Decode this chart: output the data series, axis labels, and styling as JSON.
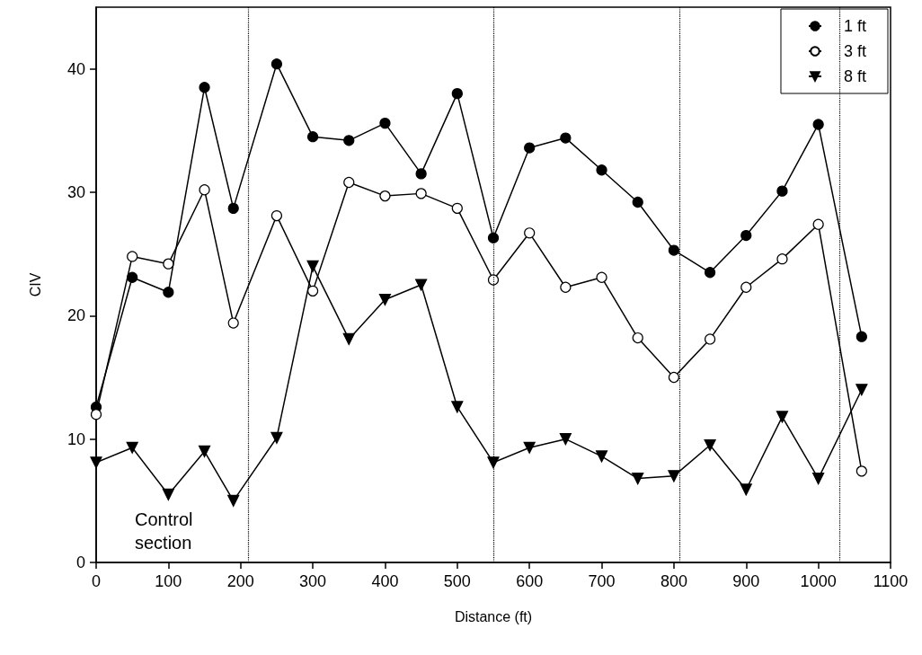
{
  "chart_data": {
    "type": "line",
    "xlabel": "Distance (ft)",
    "ylabel": "CIV",
    "x": [
      0,
      50,
      100,
      150,
      190,
      250,
      300,
      350,
      400,
      450,
      500,
      550,
      600,
      650,
      700,
      750,
      800,
      850,
      900,
      950,
      1000,
      1060
    ],
    "series": [
      {
        "name": "1 ft",
        "color": "#000000",
        "marker": "circle",
        "values": [
          12.6,
          23.1,
          21.9,
          38.5,
          28.7,
          40.4,
          34.5,
          34.2,
          35.6,
          31.5,
          38.0,
          26.3,
          33.6,
          34.4,
          31.8,
          29.2,
          25.3,
          23.5,
          26.5,
          30.1,
          35.5,
          18.3
        ]
      },
      {
        "name": "3 ft",
        "color": "#000000",
        "marker": "circle",
        "colors": [
          "#ffffff",
          "#ffffff",
          "#ffffff",
          "#ffffff",
          "#ffffff",
          "#ffffff",
          "#ffffff",
          "#ffffff",
          "#ffffff",
          "#ffffff",
          "#ffffff",
          "#ffffff",
          "#ffffff",
          "#ffffff",
          "#ffffff",
          "#ffffff",
          "#ffffff",
          "#ffffff",
          "#ffffff",
          "#ffffff",
          "#ffffff",
          "#ffffff"
        ],
        "values": [
          12.0,
          24.8,
          24.2,
          30.2,
          19.4,
          28.1,
          22.0,
          30.8,
          29.7,
          29.9,
          28.7,
          22.9,
          26.7,
          22.3,
          23.1,
          18.2,
          15.0,
          18.1,
          22.3,
          24.6,
          27.4,
          7.4
        ]
      },
      {
        "name": "8 ft",
        "color": "#000000",
        "marker": "triangle",
        "values": [
          8.1,
          9.3,
          5.5,
          9.0,
          5.0,
          10.1,
          24.0,
          18.1,
          21.3,
          22.5,
          12.6,
          8.1,
          9.3,
          10.0,
          8.6,
          6.8,
          7.0,
          9.5,
          5.9,
          11.8,
          6.8,
          14.0
        ]
      }
    ],
    "xlim": [
      0,
      1100
    ],
    "xticks": [
      0,
      100,
      200,
      300,
      400,
      500,
      600,
      700,
      800,
      900,
      1000,
      1100
    ],
    "ylim": [
      0,
      45
    ],
    "yticks": [
      0,
      10,
      20,
      30,
      40
    ],
    "ref_lines": [
      {
        "axis": "x",
        "value": 210,
        "line_style": "dotted",
        "color": "#000000"
      },
      {
        "axis": "x",
        "value": 550,
        "line_style": "dotted",
        "color": "#000000"
      },
      {
        "axis": "x",
        "value": 808,
        "line_style": "dotted",
        "color": "#000000"
      },
      {
        "axis": "x",
        "value": 1030,
        "line_style": "dotted",
        "color": "#000000"
      }
    ],
    "annotations": [
      "Control\nsection"
    ],
    "legend": "top right",
    "grid": false
  }
}
